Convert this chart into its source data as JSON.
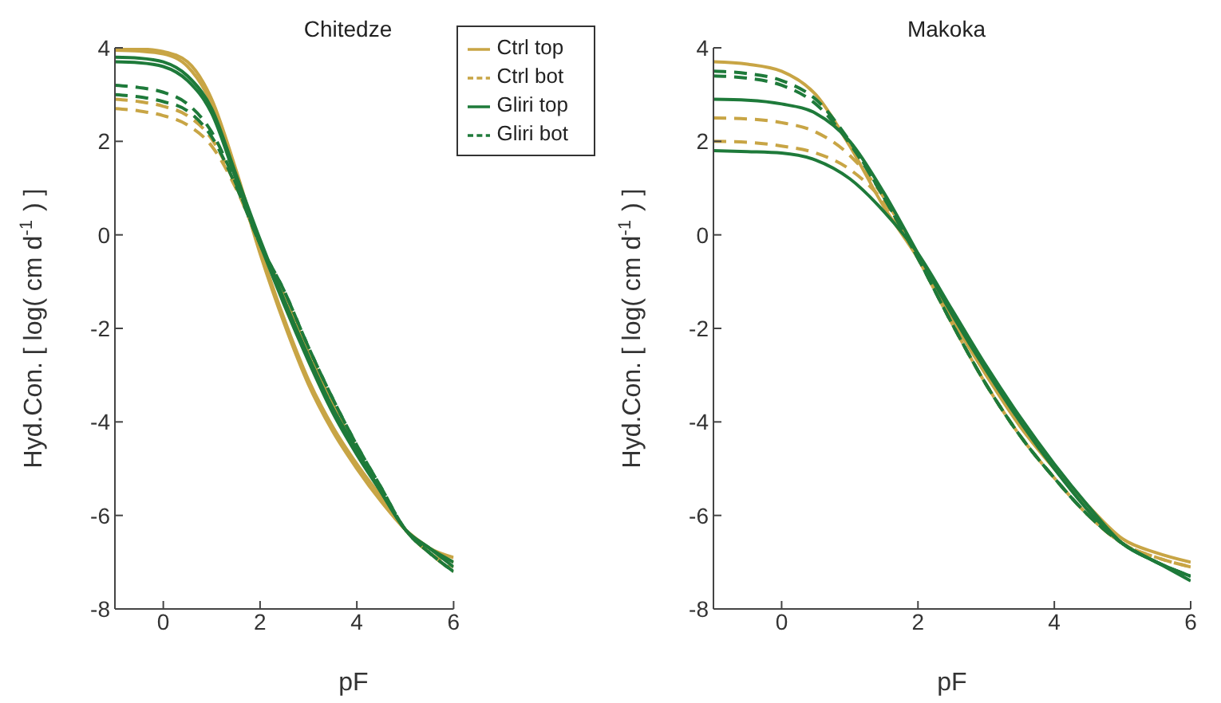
{
  "chart_data": [
    {
      "type": "line",
      "title": "Chitedze",
      "xlabel": "pF",
      "ylabel": "Hyd.Con. [ log( cm d$^{-1}$ ) ]",
      "x": [
        -1,
        -0.5,
        0,
        0.5,
        1,
        1.5,
        2,
        2.5,
        3,
        3.5,
        4,
        4.5,
        5,
        5.5,
        6
      ],
      "xlim": [
        -1,
        6
      ],
      "xticks": [
        0,
        2,
        4,
        6
      ],
      "ylim": [
        -8,
        4
      ],
      "yticks": [
        -8,
        -6,
        -4,
        -2,
        0,
        2,
        4
      ],
      "legend": "top right",
      "marker": "none",
      "series": [
        {
          "name": "Ctrl top",
          "color": "#c8a545",
          "line_style": "solid",
          "values": [
            4.0,
            3.98,
            3.92,
            3.7,
            2.9,
            1.4,
            -0.3,
            -1.8,
            -3.1,
            -4.1,
            -4.9,
            -5.6,
            -6.3,
            -6.7,
            -6.9
          ]
        },
        {
          "color": "#c8a545",
          "line_style": "solid",
          "values": [
            3.95,
            3.93,
            3.87,
            3.6,
            2.8,
            1.3,
            -0.4,
            -1.9,
            -3.2,
            -4.2,
            -5.0,
            -5.7,
            -6.3,
            -6.7,
            -7.0
          ]
        },
        {
          "name": "Ctrl bot",
          "color": "#c8a545",
          "line_style": "dashed",
          "values": [
            2.7,
            2.65,
            2.55,
            2.35,
            1.9,
            1.0,
            -0.2,
            -1.3,
            -2.5,
            -3.6,
            -4.6,
            -5.5,
            -6.3,
            -6.8,
            -7.2
          ]
        },
        {
          "color": "#c8a545",
          "line_style": "dashed",
          "values": [
            2.9,
            2.85,
            2.75,
            2.55,
            2.05,
            1.05,
            -0.2,
            -1.3,
            -2.5,
            -3.6,
            -4.6,
            -5.5,
            -6.3,
            -6.8,
            -7.1
          ]
        },
        {
          "name": "Gliri top",
          "color": "#1e7a3a",
          "line_style": "solid",
          "values": [
            3.8,
            3.78,
            3.7,
            3.4,
            2.7,
            1.3,
            -0.1,
            -1.4,
            -2.6,
            -3.7,
            -4.6,
            -5.5,
            -6.3,
            -6.7,
            -7.1
          ]
        },
        {
          "color": "#1e7a3a",
          "line_style": "solid",
          "values": [
            3.7,
            3.68,
            3.6,
            3.3,
            2.6,
            1.2,
            -0.2,
            -1.5,
            -2.7,
            -3.8,
            -4.7,
            -5.5,
            -6.3,
            -6.7,
            -7.0
          ]
        },
        {
          "name": "Gliri bot",
          "color": "#1e7a3a",
          "line_style": "dashed",
          "values": [
            3.2,
            3.15,
            3.05,
            2.8,
            2.2,
            1.1,
            -0.2,
            -1.2,
            -2.4,
            -3.5,
            -4.5,
            -5.4,
            -6.3,
            -6.8,
            -7.2
          ]
        },
        {
          "color": "#1e7a3a",
          "line_style": "dashed",
          "values": [
            3.0,
            2.95,
            2.85,
            2.65,
            2.1,
            1.05,
            -0.2,
            -1.2,
            -2.4,
            -3.5,
            -4.5,
            -5.4,
            -6.3,
            -6.8,
            -7.2
          ]
        }
      ]
    },
    {
      "type": "line",
      "title": "Makoka",
      "xlabel": "pF",
      "ylabel": "Hyd.Con. [ log( cm d$^{-1}$ ) ]",
      "x": [
        -1,
        -0.5,
        0,
        0.5,
        1,
        1.5,
        2,
        2.5,
        3,
        3.5,
        4,
        4.5,
        5,
        5.5,
        6
      ],
      "xlim": [
        -1,
        6
      ],
      "xticks": [
        0,
        2,
        4,
        6
      ],
      "ylim": [
        -8,
        4
      ],
      "yticks": [
        -8,
        -6,
        -4,
        -2,
        0,
        2,
        4
      ],
      "marker": "none",
      "series": [
        {
          "color": "#c8a545",
          "line_style": "solid",
          "values": [
            3.7,
            3.65,
            3.5,
            3.0,
            1.9,
            0.6,
            -0.5,
            -1.8,
            -3.0,
            -4.1,
            -5.0,
            -5.8,
            -6.5,
            -6.8,
            -7.0
          ]
        },
        {
          "color": "#c8a545",
          "line_style": "dashed",
          "values": [
            2.5,
            2.48,
            2.4,
            2.2,
            1.7,
            0.8,
            -0.5,
            -1.9,
            -3.2,
            -4.3,
            -5.2,
            -6.0,
            -6.6,
            -6.9,
            -7.1
          ]
        },
        {
          "color": "#c8a545",
          "line_style": "dashed",
          "values": [
            2.0,
            1.98,
            1.9,
            1.75,
            1.4,
            0.7,
            -0.5,
            -1.9,
            -3.2,
            -4.3,
            -5.2,
            -6.0,
            -6.6,
            -6.9,
            -7.1
          ]
        },
        {
          "color": "#1e7a3a",
          "line_style": "solid",
          "values": [
            2.9,
            2.88,
            2.8,
            2.6,
            2.0,
            0.9,
            -0.4,
            -1.7,
            -2.9,
            -4.0,
            -5.0,
            -5.9,
            -6.6,
            -7.0,
            -7.3
          ]
        },
        {
          "color": "#1e7a3a",
          "line_style": "solid",
          "values": [
            1.8,
            1.78,
            1.75,
            1.6,
            1.2,
            0.5,
            -0.4,
            -1.6,
            -2.8,
            -3.9,
            -4.9,
            -5.8,
            -6.6,
            -7.0,
            -7.4
          ]
        },
        {
          "color": "#1e7a3a",
          "line_style": "dashed",
          "values": [
            3.5,
            3.45,
            3.3,
            2.9,
            2.0,
            0.8,
            -0.5,
            -1.9,
            -3.2,
            -4.3,
            -5.2,
            -6.0,
            -6.6,
            -7.0,
            -7.3
          ]
        },
        {
          "color": "#1e7a3a",
          "line_style": "dashed",
          "values": [
            3.4,
            3.35,
            3.2,
            2.8,
            1.95,
            0.8,
            -0.5,
            -1.9,
            -3.2,
            -4.3,
            -5.2,
            -6.0,
            -6.6,
            -7.0,
            -7.3
          ]
        }
      ]
    }
  ]
}
